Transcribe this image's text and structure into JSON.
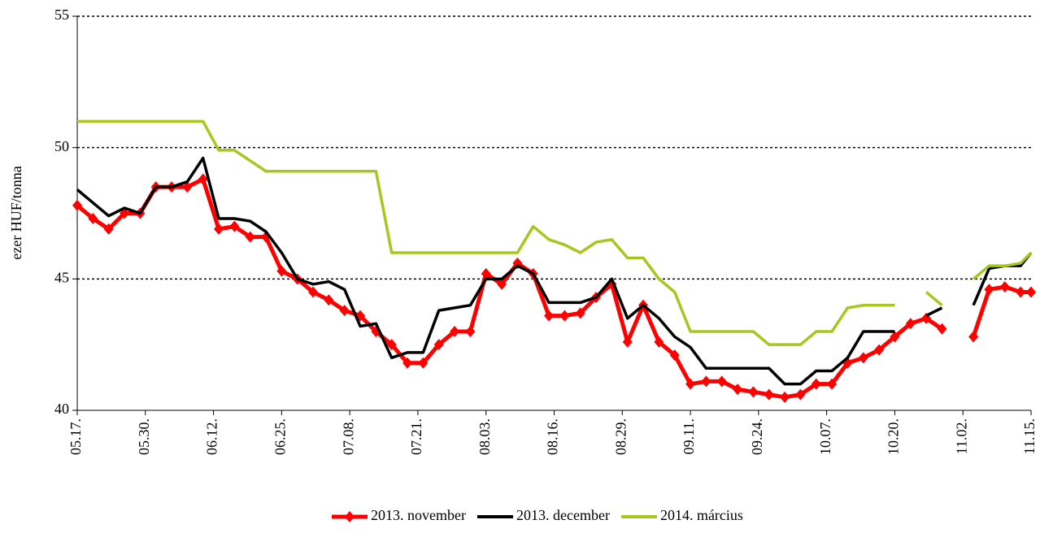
{
  "chart_data": {
    "type": "line",
    "y_label": "ezer HUF/tonna",
    "x": [
      0,
      3,
      6,
      9,
      12,
      15,
      18,
      21,
      24,
      27,
      30,
      33,
      36,
      39,
      42,
      45,
      48,
      51,
      54,
      57,
      60,
      63,
      66,
      69,
      72,
      75,
      78,
      81,
      84,
      87,
      90,
      93,
      96,
      99,
      102,
      105,
      108,
      111,
      114,
      117,
      120,
      123,
      126,
      129,
      132,
      135,
      138,
      141,
      144,
      147,
      150,
      153,
      156,
      159,
      162,
      165,
      168,
      171,
      174,
      177,
      180,
      182
    ],
    "xlim": [
      0,
      182
    ],
    "xticks": [
      {
        "value": 0,
        "label": "05.17."
      },
      {
        "value": 13,
        "label": "05.30."
      },
      {
        "value": 26,
        "label": "06.12."
      },
      {
        "value": 39,
        "label": "06.25."
      },
      {
        "value": 52,
        "label": "07.08."
      },
      {
        "value": 65,
        "label": "07.21."
      },
      {
        "value": 78,
        "label": "08.03."
      },
      {
        "value": 91,
        "label": "08.16."
      },
      {
        "value": 104,
        "label": "08.29."
      },
      {
        "value": 117,
        "label": "09.11."
      },
      {
        "value": 130,
        "label": "09.24."
      },
      {
        "value": 143,
        "label": "10.07."
      },
      {
        "value": 156,
        "label": "10.20."
      },
      {
        "value": 169,
        "label": "11.02."
      },
      {
        "value": 182,
        "label": "11.15."
      }
    ],
    "ylim": [
      40,
      55
    ],
    "yticks": [
      40,
      45,
      50,
      55
    ],
    "grid": true,
    "legend": "bottom",
    "series": [
      {
        "name": "2013. november",
        "color": "#ff0000",
        "marker": "diamond",
        "values": [
          47.8,
          47.3,
          46.9,
          47.5,
          47.5,
          48.5,
          48.5,
          48.5,
          48.8,
          46.9,
          47.0,
          46.6,
          46.6,
          45.3,
          45.0,
          44.5,
          44.2,
          43.8,
          43.6,
          43.0,
          42.5,
          41.8,
          41.8,
          42.5,
          43.0,
          43.0,
          45.2,
          44.8,
          45.6,
          45.2,
          43.6,
          43.6,
          43.7,
          44.3,
          44.8,
          42.6,
          44.0,
          42.6,
          42.1,
          41.0,
          41.1,
          41.1,
          40.8,
          40.7,
          40.6,
          40.5,
          40.6,
          41.0,
          41.0,
          41.8,
          42.0,
          42.3,
          42.8,
          43.3,
          43.5,
          43.1,
          null,
          42.8,
          44.6,
          44.7,
          44.5,
          44.5
        ]
      },
      {
        "name": "2013. december",
        "color": "#000000",
        "values": [
          48.4,
          47.9,
          47.4,
          47.7,
          47.5,
          48.5,
          48.5,
          48.7,
          49.6,
          47.3,
          47.3,
          47.2,
          46.8,
          46.0,
          45.0,
          44.8,
          44.9,
          44.6,
          43.2,
          43.3,
          42.0,
          42.2,
          42.2,
          43.8,
          43.9,
          44.0,
          45.0,
          45.0,
          45.5,
          45.2,
          44.1,
          44.1,
          44.1,
          44.3,
          45.0,
          43.5,
          44.0,
          43.5,
          42.8,
          42.4,
          41.6,
          41.6,
          41.6,
          41.6,
          41.6,
          41.0,
          41.0,
          41.5,
          41.5,
          42.0,
          43.0,
          43.0,
          43.0,
          null,
          43.6,
          43.9,
          null,
          44.0,
          45.4,
          45.5,
          45.5,
          46.0
        ]
      },
      {
        "name": "2014. március",
        "color": "#a6c81e",
        "values": [
          51.0,
          51.0,
          51.0,
          51.0,
          51.0,
          51.0,
          51.0,
          51.0,
          51.0,
          49.9,
          49.9,
          49.5,
          49.1,
          49.1,
          49.1,
          49.1,
          49.1,
          49.1,
          49.1,
          49.1,
          46.0,
          46.0,
          46.0,
          46.0,
          46.0,
          46.0,
          46.0,
          46.0,
          46.0,
          47.0,
          46.5,
          46.3,
          46.0,
          46.4,
          46.5,
          45.8,
          45.8,
          45.0,
          44.5,
          43.0,
          43.0,
          43.0,
          43.0,
          43.0,
          42.5,
          42.5,
          42.5,
          43.0,
          43.0,
          43.9,
          44.0,
          44.0,
          44.0,
          null,
          44.5,
          44.0,
          null,
          45.0,
          45.5,
          45.5,
          45.6,
          46.0
        ]
      }
    ]
  }
}
